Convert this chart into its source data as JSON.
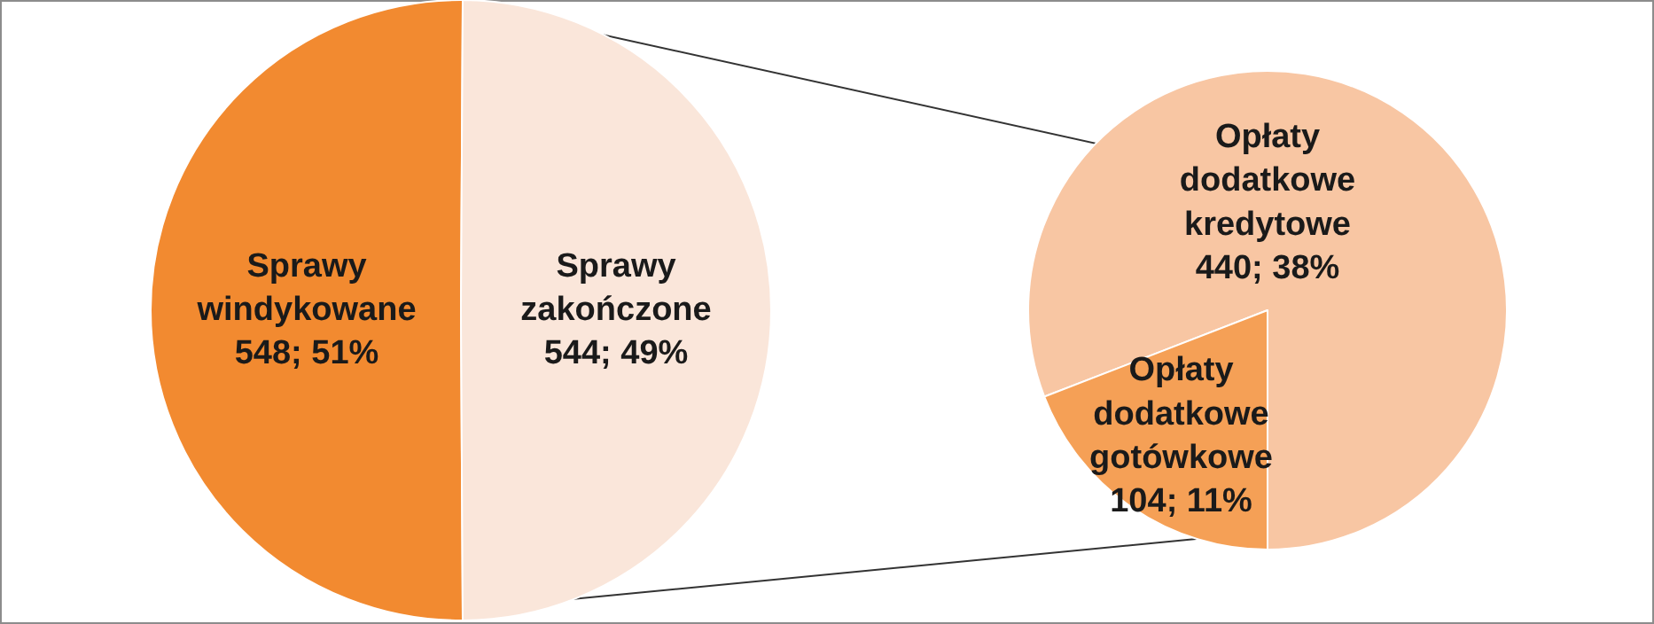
{
  "chart_data": [
    {
      "type": "pie",
      "categories": [
        "Sprawy windykowane",
        "Sprawy zakończone"
      ],
      "values": [
        548,
        544
      ],
      "value_labels": [
        "548; 51%",
        "544; 49%"
      ],
      "colors": [
        "#f28a30",
        "#fae6da"
      ]
    },
    {
      "type": "pie",
      "categories": [
        "Opłaty dodatkowe kredytowe",
        "Opłaty dodatkowe gotówkowe"
      ],
      "values": [
        440,
        104
      ],
      "value_labels": [
        "440; 38%",
        "104; 11%"
      ],
      "colors": [
        "#f8c6a3",
        "#f5a056"
      ]
    }
  ]
}
